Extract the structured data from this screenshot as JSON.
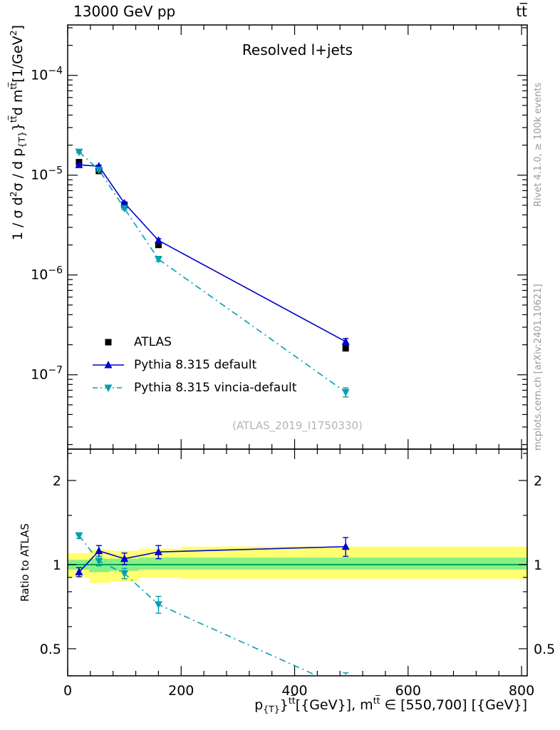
{
  "header": {
    "left": "13000 GeV pp",
    "right": "tt̅"
  },
  "credits": {
    "rivet": "Rivet 4.1.0, ≥ 100k events",
    "mcplots": "mcplots.cern.ch [arXiv:2401.10621]"
  },
  "chart_data": {
    "type": "line",
    "title": "Resolved l+jets",
    "watermark": "(ATLAS_2019_I1750330)",
    "xlim": [
      0,
      810
    ],
    "x_ticks": [
      0,
      200,
      400,
      600,
      800
    ],
    "x_minor_step": 40,
    "xlabel_segments": [
      {
        "t": "p",
        "s": "n"
      },
      {
        "t": "{T}",
        "s": "sub"
      },
      {
        "t": "}",
        "s": "n"
      },
      {
        "t": "tt̅",
        "s": "sup"
      },
      {
        "t": "[{GeV}], m",
        "s": "n"
      },
      {
        "t": "tt̅",
        "s": "sup"
      },
      {
        "t": " ∈ [550,700] [{GeV}]",
        "s": "n"
      }
    ],
    "main": {
      "yscale": "log",
      "ylim": [
        1.8e-08,
        0.00032
      ],
      "y_major_ticks_exp": [
        -7,
        -6,
        -5,
        -4
      ],
      "ylabel_segments": [
        {
          "t": "1 / σ d",
          "s": "n"
        },
        {
          "t": "2",
          "s": "sup"
        },
        {
          "t": "σ /  d p",
          "s": "n"
        },
        {
          "t": "{T}",
          "s": "sub"
        },
        {
          "t": "}",
          "s": "n"
        },
        {
          "t": "tt̅",
          "s": "sup"
        },
        {
          "t": "d m",
          "s": "n"
        },
        {
          "t": "tt̅",
          "s": "sup"
        },
        {
          "t": "[1/GeV",
          "s": "n"
        },
        {
          "t": "2",
          "s": "sup"
        },
        {
          "t": "]",
          "s": "n"
        }
      ],
      "series": [
        {
          "id": "atlas",
          "name": "ATLAS",
          "color": "#000000",
          "marker": "square",
          "line": "none",
          "x": [
            20,
            55,
            100,
            160,
            490
          ],
          "y": [
            1.35e-05,
            1.1e-05,
            5e-06,
            2e-06,
            1.85e-07
          ],
          "yerr": [
            6e-07,
            5e-07,
            2.5e-07,
            1.2e-07,
            1.2e-08
          ]
        },
        {
          "id": "pythia-default",
          "name": "Pythia 8.315 default",
          "color": "#0000cc",
          "marker": "triangle-up",
          "line": "solid",
          "x": [
            20,
            55,
            100,
            160,
            490
          ],
          "y": [
            1.27e-05,
            1.23e-05,
            5.25e-06,
            2.22e-06,
            2.15e-07
          ],
          "yerr": [
            3e-07,
            3e-07,
            1.5e-07,
            9e-08,
            1.6e-08
          ]
        },
        {
          "id": "pythia-vincia",
          "name": "Pythia 8.315 vincia-default",
          "color": "#00a0b0",
          "marker": "triangle-down",
          "line": "dashdot",
          "x": [
            20,
            55,
            100,
            160,
            490
          ],
          "y": [
            1.71e-05,
            1.13e-05,
            4.65e-06,
            1.44e-06,
            6.7e-08
          ],
          "yerr": [
            4e-07,
            3e-07,
            1.4e-07,
            7e-08,
            7e-09
          ]
        }
      ]
    },
    "ratio": {
      "ylabel": "Ratio to ATLAS",
      "yscale": "log",
      "ylim": [
        0.4,
        2.59
      ],
      "y_ticks": [
        0.5,
        1,
        2
      ],
      "y_minor_ticks": [
        0.4,
        0.6,
        0.7,
        0.8,
        0.9,
        1.5,
        2.5
      ],
      "reference_line": 1,
      "band_colors": {
        "outer": "#ffff70",
        "inner": "#86f086",
        "line": "#00a24d"
      },
      "bands": [
        {
          "x1": 0,
          "x2": 38,
          "outer": [
            0.9,
            1.1
          ],
          "inner": [
            0.96,
            1.04
          ]
        },
        {
          "x1": 38,
          "x2": 75,
          "outer": [
            0.86,
            1.13
          ],
          "inner": [
            0.94,
            1.05
          ]
        },
        {
          "x1": 75,
          "x2": 125,
          "outer": [
            0.87,
            1.12
          ],
          "inner": [
            0.95,
            1.05
          ]
        },
        {
          "x1": 125,
          "x2": 200,
          "outer": [
            0.9,
            1.14
          ],
          "inner": [
            0.96,
            1.06
          ]
        },
        {
          "x1": 200,
          "x2": 810,
          "outer": [
            0.89,
            1.16
          ],
          "inner": [
            0.96,
            1.06
          ]
        }
      ],
      "series": [
        {
          "id": "ratio-pythia-default",
          "name": "Pythia 8.315 default",
          "color": "#0000cc",
          "marker": "triangle-up",
          "line": "solid",
          "x": [
            20,
            55,
            100,
            160,
            490
          ],
          "y": [
            0.94,
            1.12,
            1.05,
            1.11,
            1.16
          ],
          "yerr": [
            0.035,
            0.05,
            0.05,
            0.06,
            0.09
          ]
        },
        {
          "id": "ratio-pythia-vincia",
          "name": "Pythia 8.315 vincia-default",
          "color": "#00a0b0",
          "marker": "triangle-down",
          "line": "dashdot",
          "x": [
            20,
            55,
            100,
            160,
            490
          ],
          "y": [
            1.27,
            1.03,
            0.93,
            0.72,
            0.36
          ],
          "yerr": [
            0.03,
            0.04,
            0.04,
            0.05,
            0.05
          ]
        }
      ]
    }
  }
}
